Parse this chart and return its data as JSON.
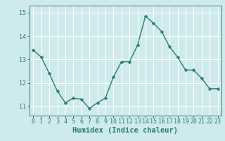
{
  "x": [
    0,
    1,
    2,
    3,
    4,
    5,
    6,
    7,
    8,
    9,
    10,
    11,
    12,
    13,
    14,
    15,
    16,
    17,
    18,
    19,
    20,
    21,
    22,
    23
  ],
  "y": [
    13.4,
    13.1,
    12.4,
    11.65,
    11.15,
    11.35,
    11.3,
    10.9,
    11.15,
    11.35,
    12.25,
    12.9,
    12.9,
    13.6,
    14.85,
    14.55,
    14.2,
    13.55,
    13.1,
    12.55,
    12.55,
    12.2,
    11.75,
    11.75
  ],
  "line_color": "#2e7d6e",
  "marker": "D",
  "marker_size": 2.2,
  "linewidth": 1.0,
  "background_color": "#ceeaec",
  "grid_color": "#ffffff",
  "tick_color": "#2e7d6e",
  "xlabel": "Humidex (Indice chaleur)",
  "xlabel_fontsize": 7.5,
  "xlabel_color": "#2e7d6e",
  "tick_fontsize": 6.0,
  "ylim": [
    10.6,
    15.3
  ],
  "xlim": [
    -0.5,
    23.5
  ],
  "yticks": [
    11,
    12,
    13,
    14,
    15
  ],
  "xticks": [
    0,
    1,
    2,
    3,
    4,
    5,
    6,
    7,
    8,
    9,
    10,
    11,
    12,
    13,
    14,
    15,
    16,
    17,
    18,
    19,
    20,
    21,
    22,
    23
  ]
}
